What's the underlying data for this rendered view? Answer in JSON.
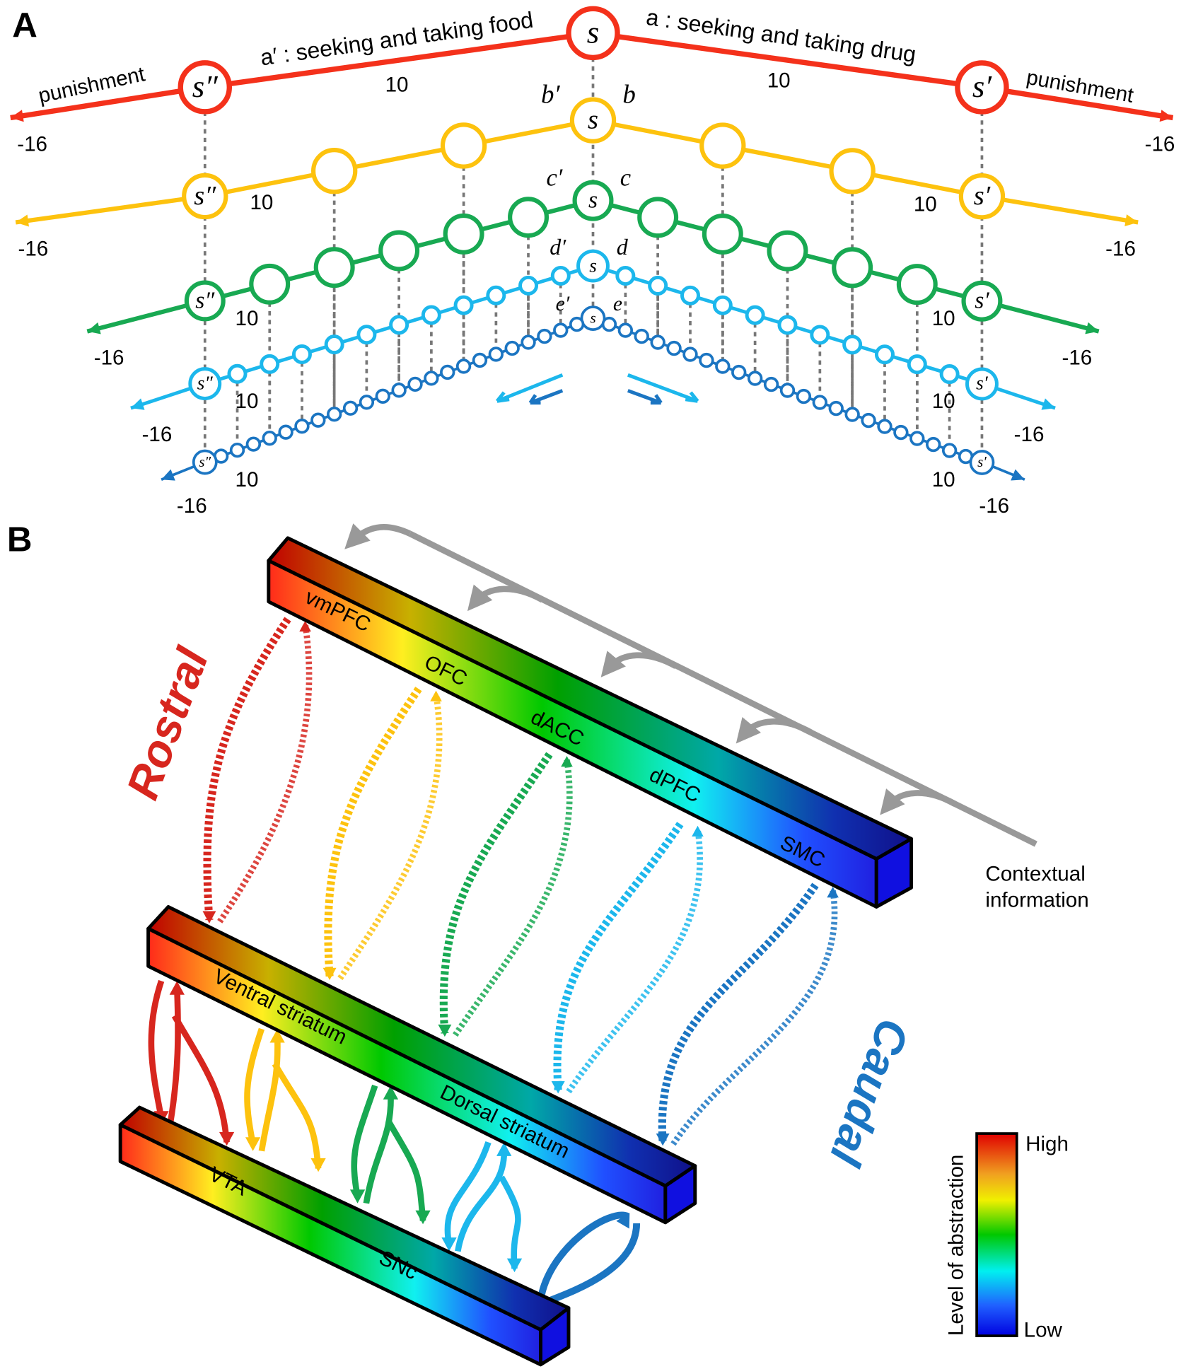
{
  "panel_a": {
    "label": "A",
    "center_state": "s",
    "right_state": "s′",
    "left_state": "s″",
    "top_labels": {
      "left_action": "a′ : seeking and taking food",
      "right_action": "a : seeking and taking drug",
      "left_punishment": "punishment",
      "right_punishment": "punishment"
    },
    "chains": [
      {
        "level": 1,
        "color": "#f4311b",
        "steps": 1,
        "left_action": "",
        "right_action": "",
        "reward": "10",
        "punishment": "-16"
      },
      {
        "level": 2,
        "color": "#fdc20e",
        "steps": 3,
        "left_action": "b′",
        "right_action": "b",
        "reward": "10",
        "punishment": "-16"
      },
      {
        "level": 3,
        "color": "#18a952",
        "steps": 6,
        "left_action": "c′",
        "right_action": "c",
        "reward": "10",
        "punishment": "-16"
      },
      {
        "level": 4,
        "color": "#1cb7ec",
        "steps": 12,
        "left_action": "d′",
        "right_action": "d",
        "reward": "10",
        "punishment": "-16"
      },
      {
        "level": 5,
        "color": "#1b75c2",
        "steps": 24,
        "left_action": "e′",
        "right_action": "e",
        "reward": "10",
        "punishment": "-16"
      }
    ]
  },
  "panel_b": {
    "label": "B",
    "cortex": {
      "regions": [
        "vmPFC",
        "OFC",
        "dACC",
        "dPFC",
        "SMC"
      ]
    },
    "striatum": {
      "regions": [
        "Ventral striatum",
        "Dorsal striatum"
      ]
    },
    "midbrain": {
      "regions": [
        "VTA",
        "SNc"
      ]
    },
    "rostral_label": "Rostral",
    "caudal_label": "Caudal",
    "rostral_color": "#d7261e",
    "caudal_color": "#1b75c2",
    "context_label_line1": "Contextual",
    "context_label_line2": "information",
    "loop_colors": [
      "#d7261e",
      "#fdc20e",
      "#18a952",
      "#1cb7ec",
      "#1b75c2"
    ],
    "colorbar": {
      "title": "Level of abstraction",
      "high": "High",
      "low": "Low",
      "colors": [
        "#e00000",
        "#f0a020",
        "#f0f000",
        "#00c800",
        "#00f0f0",
        "#2060ff",
        "#0000e0"
      ]
    }
  }
}
